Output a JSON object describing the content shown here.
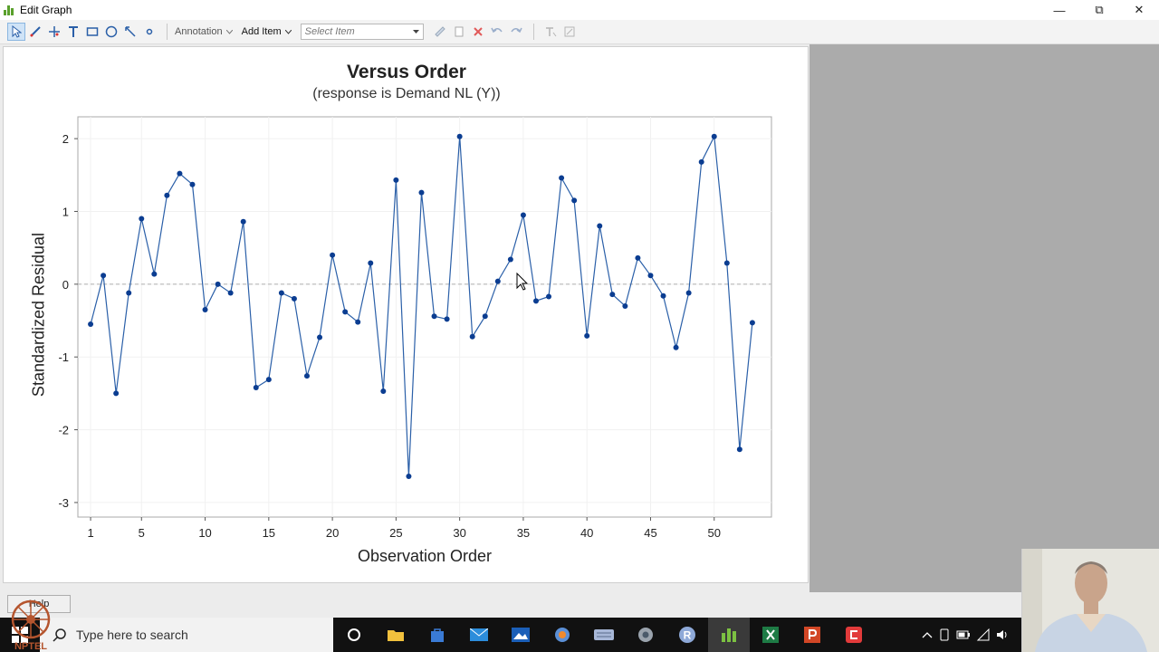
{
  "window": {
    "title": "Edit Graph",
    "controls": {
      "minimize": "—",
      "restore": "⧉",
      "close": "✕"
    }
  },
  "toolbar": {
    "tools": [
      "select-tool",
      "brush-tool",
      "crosshair-tool",
      "text-tool",
      "rectangle-tool",
      "ellipse-tool",
      "line-tool",
      "marker-tool"
    ],
    "annotation_label": "Annotation",
    "add_item_label": "Add Item",
    "select_item_placeholder": "Select Item"
  },
  "chart_data": {
    "type": "line",
    "title": "Versus Order",
    "subtitle": "(response is Demand NL (Y))",
    "xlabel": "Observation Order",
    "ylabel": "Standardized Residual",
    "xlim": [
      0,
      54.5
    ],
    "ylim": [
      -3.2,
      2.3
    ],
    "x_ticks": [
      1,
      5,
      10,
      15,
      20,
      25,
      30,
      35,
      40,
      45,
      50
    ],
    "y_ticks": [
      2,
      1,
      0,
      -1,
      -2,
      -3
    ],
    "reference_line": {
      "y": 0,
      "style": "dashed",
      "color": "#b8b8b8"
    },
    "grid": true,
    "series": [
      {
        "color": "#2a5fa8",
        "marker_color": "#0b3d91",
        "x": [
          1,
          2,
          3,
          4,
          5,
          6,
          7,
          8,
          9,
          10,
          11,
          12,
          13,
          14,
          15,
          16,
          17,
          18,
          19,
          20,
          21,
          22,
          23,
          24,
          25,
          26,
          27,
          28,
          29,
          30,
          31,
          32,
          33,
          34,
          35,
          36,
          37,
          38,
          39,
          40,
          41,
          42,
          43,
          44,
          45,
          46,
          47,
          48,
          49,
          50,
          51,
          52,
          53
        ],
        "y": [
          -0.55,
          0.12,
          -1.5,
          -0.12,
          0.9,
          0.14,
          1.22,
          1.52,
          1.37,
          -0.35,
          0.0,
          -0.12,
          0.86,
          -1.42,
          -1.31,
          -0.12,
          -0.2,
          -1.26,
          -0.73,
          0.4,
          -0.38,
          -0.52,
          0.29,
          -1.47,
          1.43,
          -2.64,
          1.26,
          -0.44,
          -0.48,
          2.03,
          -0.72,
          -0.44,
          0.04,
          0.34,
          0.95,
          -0.23,
          -0.17,
          1.46,
          1.15,
          -0.71,
          0.8,
          -0.14,
          -0.3,
          0.36,
          0.12,
          -0.16,
          -0.87,
          -0.12,
          1.68,
          2.03,
          0.29,
          -2.27,
          -0.53
        ]
      }
    ]
  },
  "statusbar": {
    "help_label": "Help"
  },
  "taskbar": {
    "search_placeholder": "Type here to search",
    "apps": [
      "cortana-icon",
      "file-explorer-icon",
      "store-icon",
      "mail-icon",
      "photos-icon",
      "browser-icon",
      "keyboard-icon",
      "chrome-icon",
      "r-icon",
      "minitab-icon",
      "excel-icon",
      "powerpoint-icon",
      "camtasia-icon"
    ]
  },
  "logo": {
    "text": "NPTEL"
  }
}
